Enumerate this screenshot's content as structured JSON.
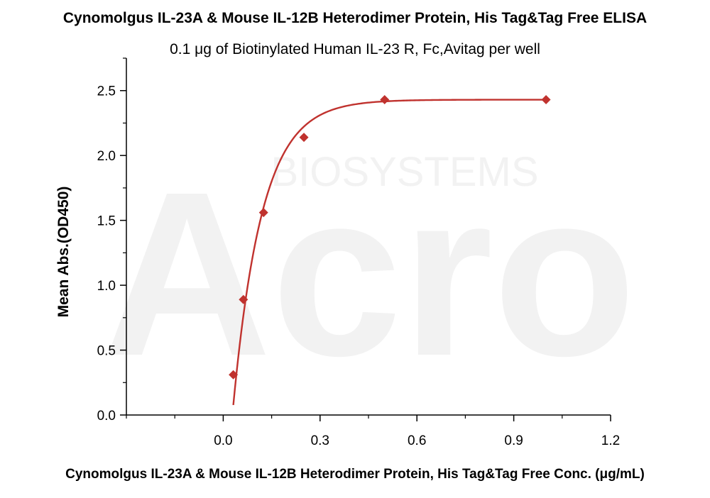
{
  "chart_data": {
    "type": "scatter",
    "title": "Cynomolgus IL-23A & Mouse IL-12B Heterodimer Protein, His Tag&Tag Free ELISA",
    "subtitle": "0.1 μg of Biotinylated Human IL-23 R, Fc,Avitag per well",
    "xlabel": "Cynomolgus IL-23A & Mouse IL-12B Heterodimer Protein, His Tag&Tag Free Conc. (μg/mL)",
    "ylabel": "Mean Abs.(OD450)",
    "xlim": [
      -0.3,
      1.2
    ],
    "ylim": [
      0,
      2.75
    ],
    "x_ticks": [
      "0.0",
      "0.3",
      "0.6",
      "0.9",
      "1.2"
    ],
    "x_tick_values": [
      0.0,
      0.3,
      0.6,
      0.9,
      1.2
    ],
    "y_ticks": [
      "0.0",
      "0.5",
      "1.0",
      "1.5",
      "2.0",
      "2.5"
    ],
    "y_tick_values": [
      0.0,
      0.5,
      1.0,
      1.5,
      2.0,
      2.5
    ],
    "grid": false,
    "series": [
      {
        "marker": "diamond",
        "color": "#c0322e",
        "x": [
          0.03125,
          0.0625,
          0.125,
          0.25,
          0.5,
          1.0
        ],
        "y": [
          0.31,
          0.89,
          1.56,
          2.14,
          2.43,
          2.43
        ],
        "fit_curve": true
      }
    ],
    "watermark_text": [
      "BIOSYSTEMS",
      "Acro"
    ]
  }
}
